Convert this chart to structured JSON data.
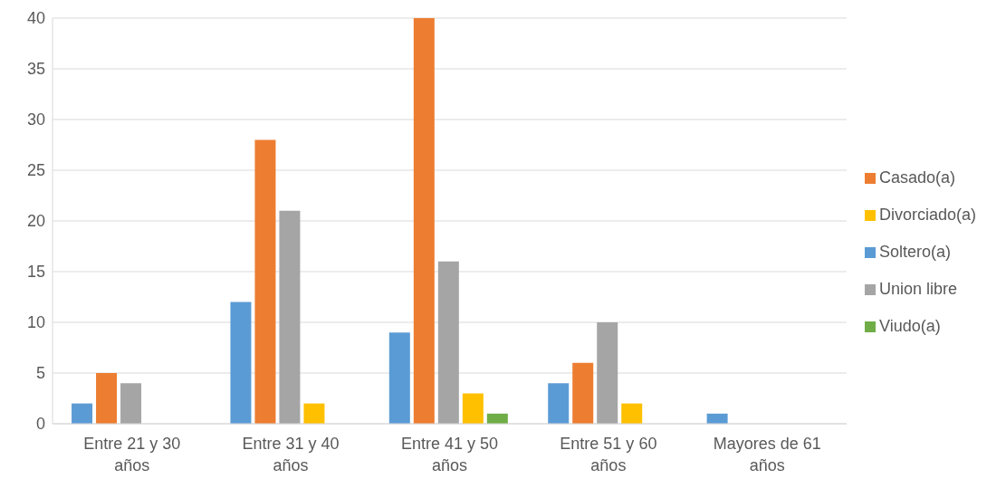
{
  "chart_data": {
    "type": "bar",
    "categories": [
      "Entre 21 y 30 años",
      "Entre 31 y 40 años",
      "Entre 41 y 50 años",
      "Entre 51 y 60 años",
      "Mayores de 61 años"
    ],
    "series": [
      {
        "name": "Soltero(a)",
        "color": "#5b9bd5",
        "values": [
          2,
          12,
          9,
          4,
          1
        ]
      },
      {
        "name": "Casado(a)",
        "color": "#ed7d31",
        "values": [
          5,
          28,
          40,
          6,
          0
        ]
      },
      {
        "name": "Union libre",
        "color": "#a5a5a5",
        "values": [
          4,
          21,
          16,
          10,
          0
        ]
      },
      {
        "name": "Divorciado(a)",
        "color": "#ffc000",
        "values": [
          0,
          2,
          3,
          2,
          0
        ]
      },
      {
        "name": "Viudo(a)",
        "color": "#70ad47",
        "values": [
          0,
          0,
          1,
          0,
          0
        ]
      }
    ],
    "ylim": [
      0,
      40
    ],
    "yticks": [
      0,
      5,
      10,
      15,
      20,
      25,
      30,
      35,
      40
    ],
    "grid": "y",
    "legend": "right"
  }
}
